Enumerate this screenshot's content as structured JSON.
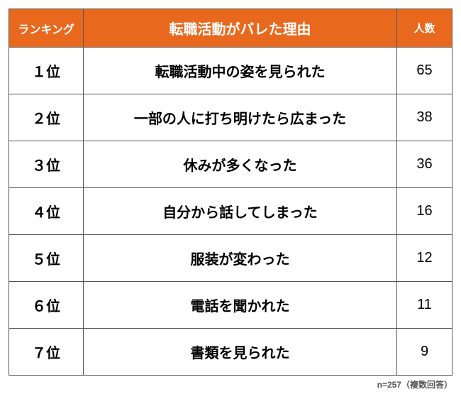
{
  "table": {
    "header_bg": "#e8691e",
    "header_fg": "#ffffff",
    "border_color": "#555555",
    "columns": {
      "rank": "ランキング",
      "reason": "転職活動がバレた理由",
      "count": "人数"
    },
    "rows": [
      {
        "rank": "１位",
        "reason": "転職活動中の姿を見られた",
        "count": "65"
      },
      {
        "rank": "２位",
        "reason": "一部の人に打ち明けたら広まった",
        "count": "38"
      },
      {
        "rank": "３位",
        "reason": "休みが多くなった",
        "count": "36"
      },
      {
        "rank": "４位",
        "reason": "自分から話してしまった",
        "count": "16"
      },
      {
        "rank": "５位",
        "reason": "服装が変わった",
        "count": "12"
      },
      {
        "rank": "６位",
        "reason": "電話を聞かれた",
        "count": "11"
      },
      {
        "rank": "７位",
        "reason": "書類を見られた",
        "count": "9"
      }
    ]
  },
  "footnote": "n=257（複数回答）",
  "footnote_color": "#555555"
}
